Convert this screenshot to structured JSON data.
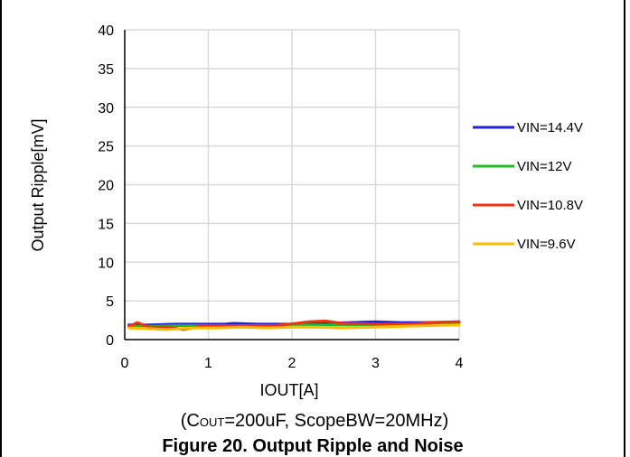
{
  "chart_data": {
    "type": "line",
    "xlabel": "IOUT[A]",
    "ylabel": "Output Ripple[mV]",
    "xlim": [
      0,
      4
    ],
    "ylim": [
      0,
      40
    ],
    "xticks": [
      "0",
      "1",
      "2",
      "3",
      "4"
    ],
    "yticks": [
      "0",
      "5",
      "10",
      "15",
      "20",
      "25",
      "30",
      "35",
      "40"
    ],
    "grid": true,
    "legend_position": "right",
    "condition": "(C OUT=200uF, ScopeBW=20MHz)",
    "condition_parts": {
      "prefix": "(C",
      "subscript": "OUT",
      "rest": "=200uF, ScopeBW=20MHz)"
    },
    "figure_title": "Figure 20. Output Ripple and Noise",
    "series": [
      {
        "name": "VIN=14.4V",
        "color": "#2222dd",
        "x": [
          0.05,
          0.3,
          0.6,
          0.9,
          1.2,
          1.3,
          1.6,
          2.0,
          2.4,
          2.7,
          3.0,
          3.3,
          3.6,
          4.0
        ],
        "y": [
          1.9,
          1.9,
          2.0,
          2.0,
          2.0,
          2.1,
          2.0,
          2.0,
          2.1,
          2.2,
          2.3,
          2.2,
          2.2,
          2.3
        ]
      },
      {
        "name": "VIN=12V",
        "color": "#22bb22",
        "x": [
          0.05,
          0.3,
          0.6,
          0.9,
          1.2,
          1.5,
          1.8,
          2.1,
          2.4,
          2.7,
          3.0,
          3.3,
          3.6,
          4.0
        ],
        "y": [
          1.7,
          1.7,
          1.8,
          1.8,
          1.8,
          1.8,
          1.8,
          1.9,
          1.9,
          1.9,
          1.9,
          2.0,
          2.0,
          2.1
        ]
      },
      {
        "name": "VIN=10.8V",
        "color": "#ee3311",
        "x": [
          0.05,
          0.15,
          0.3,
          0.55,
          0.7,
          0.9,
          1.2,
          1.5,
          1.8,
          2.05,
          2.2,
          2.4,
          2.6,
          3.0,
          3.4,
          3.7,
          4.0
        ],
        "y": [
          1.7,
          2.2,
          1.6,
          1.6,
          1.3,
          1.7,
          1.8,
          1.7,
          1.8,
          2.1,
          2.3,
          2.4,
          2.1,
          2.0,
          2.0,
          2.2,
          2.3
        ]
      },
      {
        "name": "VIN=9.6V",
        "color": "#ffbb00",
        "x": [
          0.05,
          0.3,
          0.5,
          0.8,
          1.1,
          1.4,
          1.7,
          2.0,
          2.3,
          2.6,
          3.0,
          3.3,
          3.6,
          4.0
        ],
        "y": [
          1.5,
          1.4,
          1.3,
          1.5,
          1.5,
          1.6,
          1.5,
          1.6,
          1.6,
          1.5,
          1.6,
          1.7,
          1.8,
          1.9
        ]
      }
    ]
  }
}
